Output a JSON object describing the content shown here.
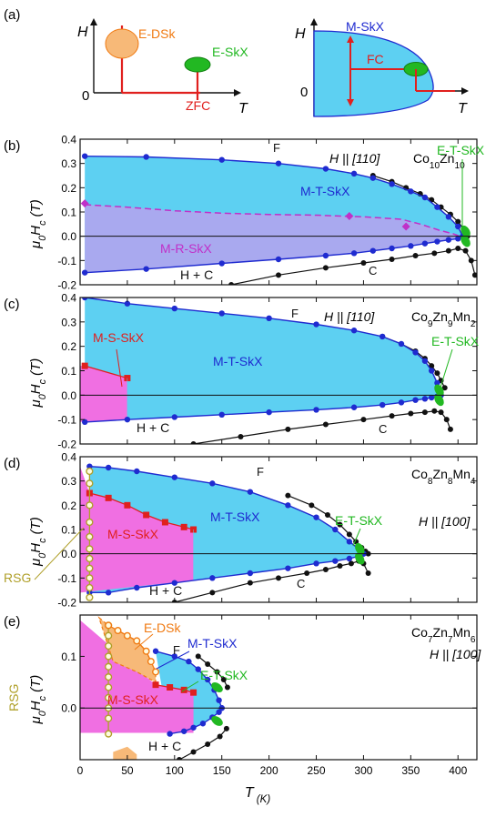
{
  "colors": {
    "skx_fill": "#5dd0f2",
    "rskx_fill": "#a9a9ef",
    "sskx_fill": "#f06fe2",
    "dsk_fill": "#f7b978",
    "tskx_green": "#22b822",
    "blue": "#1f2bd0",
    "red": "#e0201e",
    "magenta": "#c030c8",
    "orange": "#f07a12",
    "olive": "#b0a02a",
    "black": "#111111"
  },
  "schematic": {
    "panel_label": "(a)",
    "left": {
      "y_axis": "H",
      "x_axis": "T",
      "origin": "0",
      "edsk": "E-DSk",
      "eskx": "E-SkX",
      "zfc": "ZFC"
    },
    "right": {
      "y_axis": "H",
      "x_axis": "T",
      "origin": "0",
      "mskx": "M-SkX",
      "fc": "FC"
    }
  },
  "chart_data": [
    {
      "type": "line",
      "panel": "(b)",
      "compound": [
        "Co",
        "10",
        "Zn",
        "10",
        "",
        ""
      ],
      "field": "H || [110]",
      "ylabel": [
        "μ",
        "0",
        "H",
        "c",
        " (T)"
      ],
      "ylim": [
        -0.2,
        0.4
      ],
      "yticks": [
        "-0.2",
        "-0.1",
        "0.0",
        "0.1",
        "0.2",
        "0.3",
        "0.4"
      ],
      "xlim": [
        0,
        420
      ],
      "labels": {
        "F": "F",
        "MT": "M-T-SkX",
        "MR": "M-R-SkX",
        "ET": "E-T-SkX",
        "HC": "H + C",
        "C": "C"
      },
      "series": [
        {
          "name": "upper boundary",
          "x": [
            5,
            70,
            150,
            210,
            260,
            290,
            310,
            330,
            350,
            365,
            378,
            390,
            400,
            405
          ],
          "y": [
            0.33,
            0.327,
            0.315,
            0.3,
            0.278,
            0.258,
            0.24,
            0.215,
            0.185,
            0.16,
            0.12,
            0.08,
            0.04,
            0.0
          ]
        },
        {
          "name": "lower boundary",
          "x": [
            5,
            70,
            150,
            210,
            260,
            290,
            310,
            330,
            350,
            365,
            378,
            390,
            400,
            405
          ],
          "y": [
            -0.15,
            -0.135,
            -0.112,
            -0.095,
            -0.08,
            -0.07,
            -0.06,
            -0.05,
            -0.04,
            -0.03,
            -0.022,
            -0.015,
            -0.01,
            0.0
          ]
        },
        {
          "name": "M-R-SkX boundary",
          "x": [
            5,
            50,
            100,
            150,
            200,
            250,
            300,
            340,
            360,
            380,
            395,
            402
          ],
          "y": [
            0.13,
            0.12,
            0.105,
            0.095,
            0.09,
            0.087,
            0.08,
            0.07,
            0.05,
            0.025,
            0.01,
            0.0
          ]
        },
        {
          "name": "M-R-SkX points",
          "x": [
            5,
            285,
            345
          ],
          "y": [
            0.135,
            0.083,
            0.04
          ]
        }
      ],
      "black_upper": {
        "x": [
          310,
          330,
          345,
          360,
          372,
          382,
          392,
          400,
          406,
          410
        ],
        "y": [
          0.25,
          0.225,
          0.2,
          0.175,
          0.15,
          0.12,
          0.09,
          0.06,
          0.03,
          0.0
        ]
      },
      "black_lower": {
        "x": [
          160,
          210,
          260,
          300,
          330,
          355,
          375,
          390,
          400,
          408,
          414,
          418
        ],
        "y": [
          -0.2,
          -0.16,
          -0.13,
          -0.11,
          -0.095,
          -0.08,
          -0.07,
          -0.06,
          -0.05,
          -0.06,
          -0.1,
          -0.16
        ]
      }
    },
    {
      "type": "line",
      "panel": "(c)",
      "compound": [
        "Co",
        "9",
        "Zn",
        "9",
        "Mn",
        "2"
      ],
      "field": "H || [110]",
      "ylabel": [
        "μ",
        "0",
        "H",
        "c",
        " (T)"
      ],
      "ylim": [
        -0.2,
        0.4
      ],
      "yticks": [
        "-0.2",
        "-0.1",
        "0.0",
        "0.1",
        "0.2",
        "0.3",
        "0.4"
      ],
      "xlim": [
        0,
        420
      ],
      "labels": {
        "F": "F",
        "MT": "M-T-SkX",
        "MS": "M-S-SkX",
        "ET": "E-T-SkX",
        "HC": "H + C",
        "C": "C"
      },
      "series": [
        {
          "name": "upper boundary",
          "x": [
            5,
            50,
            100,
            150,
            200,
            250,
            290,
            320,
            340,
            355,
            365,
            372,
            378,
            382
          ],
          "y": [
            0.4,
            0.375,
            0.355,
            0.335,
            0.315,
            0.29,
            0.265,
            0.24,
            0.21,
            0.175,
            0.14,
            0.1,
            0.05,
            0.0
          ]
        },
        {
          "name": "lower boundary",
          "x": [
            5,
            50,
            100,
            150,
            200,
            250,
            290,
            320,
            340,
            355,
            365,
            372,
            378,
            382
          ],
          "y": [
            -0.11,
            -0.1,
            -0.09,
            -0.08,
            -0.07,
            -0.06,
            -0.05,
            -0.04,
            -0.03,
            -0.02,
            -0.015,
            -0.01,
            -0.005,
            0.0
          ]
        },
        {
          "name": "M-S-SkX upper",
          "x": [
            5,
            50
          ],
          "y": [
            0.12,
            0.07
          ]
        }
      ],
      "black_upper": {
        "x": [
          320,
          340,
          355,
          365,
          372,
          378,
          382,
          386
        ],
        "y": [
          0.24,
          0.21,
          0.18,
          0.15,
          0.12,
          0.09,
          0.06,
          0.03
        ]
      },
      "black_lower": {
        "x": [
          120,
          170,
          220,
          260,
          300,
          330,
          350,
          365,
          375,
          382,
          388,
          392
        ],
        "y": [
          -0.2,
          -0.17,
          -0.14,
          -0.12,
          -0.1,
          -0.085,
          -0.075,
          -0.07,
          -0.065,
          -0.07,
          -0.1,
          -0.14
        ]
      }
    },
    {
      "type": "line",
      "panel": "(d)",
      "compound": [
        "Co",
        "8",
        "Zn",
        "8",
        "Mn",
        "4"
      ],
      "field": "H || [100]",
      "ylabel": [
        "μ",
        "0",
        "H",
        "c",
        " (T)"
      ],
      "ylim": [
        -0.2,
        0.4
      ],
      "yticks": [
        "-0.2",
        "-0.1",
        "0.0",
        "0.1",
        "0.2",
        "0.3",
        "0.4"
      ],
      "xlim": [
        0,
        420
      ],
      "labels": {
        "F": "F",
        "MT": "M-T-SkX",
        "MS": "M-S-SkX",
        "ET": "E-T-SkX",
        "HC": "H + C",
        "C": "C",
        "RSG": "RSG"
      },
      "series": [
        {
          "name": "upper boundary",
          "x": [
            10,
            30,
            60,
            100,
            140,
            180,
            220,
            250,
            270,
            285,
            295,
            300
          ],
          "y": [
            0.36,
            0.355,
            0.34,
            0.315,
            0.29,
            0.255,
            0.2,
            0.15,
            0.1,
            0.05,
            0.02,
            0.0
          ]
        },
        {
          "name": "lower boundary",
          "x": [
            10,
            30,
            60,
            100,
            140,
            180,
            220,
            250,
            270,
            285,
            295,
            300
          ],
          "y": [
            -0.16,
            -0.16,
            -0.14,
            -0.12,
            -0.1,
            -0.08,
            -0.06,
            -0.04,
            -0.03,
            -0.02,
            -0.01,
            0.0
          ]
        },
        {
          "name": "M-S-SkX upper",
          "x": [
            10,
            30,
            50,
            70,
            90,
            110,
            120
          ],
          "y": [
            0.25,
            0.23,
            0.2,
            0.16,
            0.13,
            0.11,
            0.1
          ]
        },
        {
          "name": "RSG",
          "x": [
            10,
            10,
            10,
            10,
            10,
            10,
            10,
            10,
            10,
            10,
            10
          ],
          "y": [
            0.34,
            0.29,
            0.2,
            0.13,
            0.07,
            0.02,
            -0.02,
            -0.06,
            -0.1,
            -0.14,
            -0.18
          ]
        }
      ],
      "black_upper": {
        "x": [
          220,
          245,
          262,
          275,
          285,
          292,
          298,
          302,
          305
        ],
        "y": [
          0.24,
          0.2,
          0.16,
          0.12,
          0.08,
          0.05,
          0.025,
          0.01,
          0.0
        ]
      },
      "black_lower": {
        "x": [
          100,
          140,
          180,
          210,
          240,
          260,
          275,
          287,
          295,
          300,
          305
        ],
        "y": [
          -0.2,
          -0.16,
          -0.12,
          -0.1,
          -0.08,
          -0.065,
          -0.05,
          -0.04,
          -0.03,
          -0.04,
          -0.08
        ]
      }
    },
    {
      "type": "line",
      "panel": "(e)",
      "compound": [
        "Co",
        "7",
        "Zn",
        "7",
        "Mn",
        "6"
      ],
      "field": "H || [100]",
      "ylabel": [
        "μ",
        "0",
        "H",
        "c",
        " (T)"
      ],
      "ylim": [
        -0.1,
        0.18
      ],
      "yticks": [
        "0.0",
        "0.1"
      ],
      "xlim": [
        0,
        420
      ],
      "xticks": [
        "0",
        "50",
        "100",
        "150",
        "200",
        "250",
        "300",
        "350",
        "400"
      ],
      "xlabel": [
        "T",
        " (K)"
      ],
      "labels": {
        "F": "F",
        "MT": "M-T-SkX",
        "MS": "M-S-SkX",
        "ED": "E-DSk",
        "ET": "E-T-SkX",
        "HC": "H + C",
        "RSG": "RSG"
      },
      "series": [
        {
          "name": "upper boundary",
          "x": [
            80,
            100,
            115,
            125,
            135,
            142,
            147,
            150
          ],
          "y": [
            0.11,
            0.1,
            0.09,
            0.075,
            0.055,
            0.035,
            0.015,
            0.0
          ]
        },
        {
          "name": "lower boundary",
          "x": [
            95,
            110,
            120,
            130,
            140,
            147,
            150
          ],
          "y": [
            -0.05,
            -0.045,
            -0.038,
            -0.03,
            -0.018,
            -0.008,
            0.0
          ]
        },
        {
          "name": "M-S-SkX upper",
          "x": [
            80,
            95,
            110,
            120
          ],
          "y": [
            0.045,
            0.04,
            0.035,
            0.03
          ]
        },
        {
          "name": "RSG",
          "x": [
            30,
            30,
            30,
            30,
            30,
            30,
            30,
            30,
            30,
            30,
            30
          ],
          "y": [
            0.16,
            0.14,
            0.12,
            0.1,
            0.08,
            0.06,
            0.04,
            0.02,
            0.0,
            -0.02,
            -0.05
          ]
        },
        {
          "name": "E-DSk boundary",
          "x": [
            30,
            40,
            50,
            60,
            70,
            75,
            80
          ],
          "y": [
            0.16,
            0.15,
            0.14,
            0.13,
            0.11,
            0.09,
            0.07
          ]
        }
      ],
      "black_upper": {
        "x": [
          125,
          135,
          145,
          152,
          156
        ],
        "y": [
          0.1,
          0.085,
          0.07,
          0.055,
          0.04
        ]
      },
      "black_lower": {
        "x": [
          105,
          120,
          135,
          148,
          155
        ],
        "y": [
          -0.1,
          -0.085,
          -0.07,
          -0.055,
          -0.04
        ]
      }
    }
  ]
}
